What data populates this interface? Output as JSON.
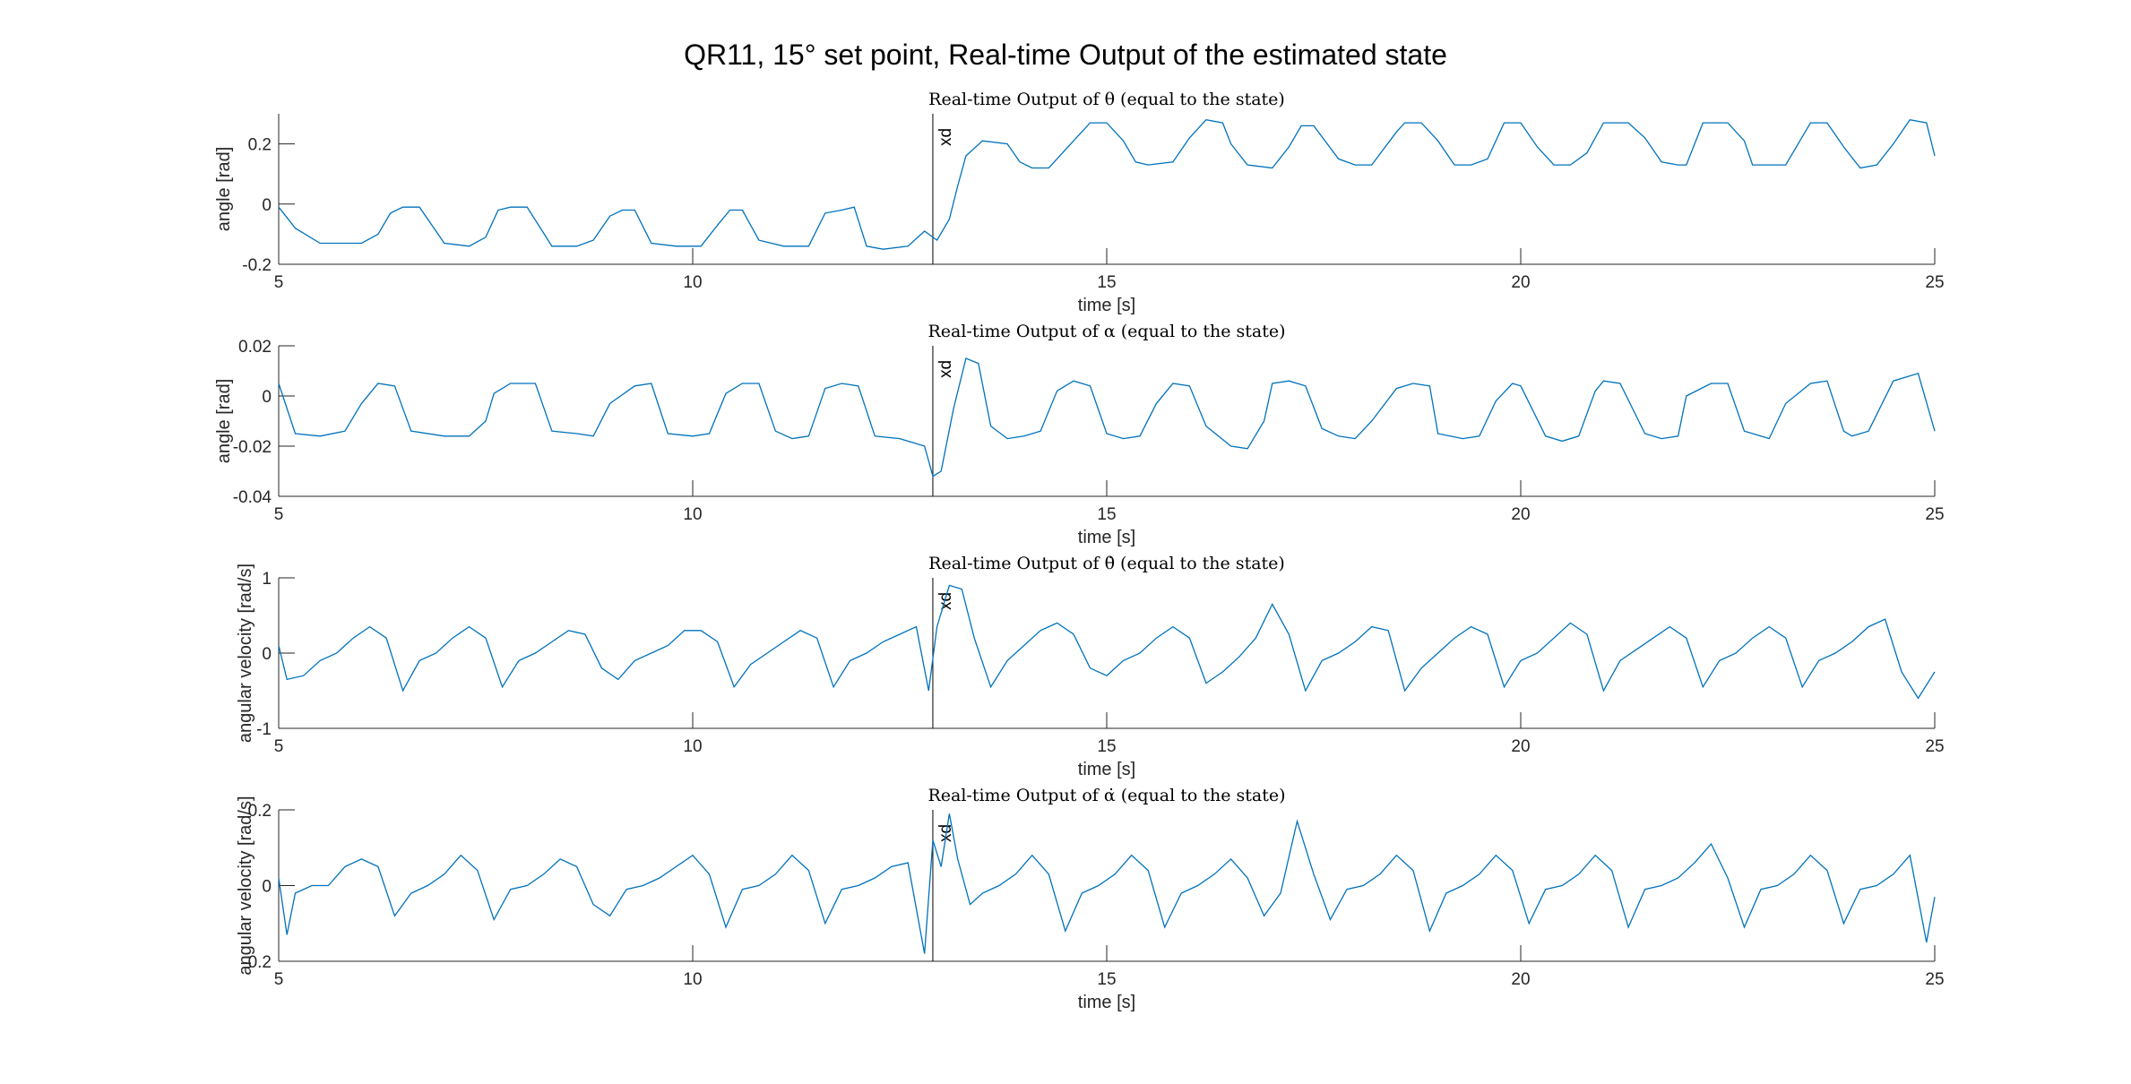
{
  "title": "QR11, 15° set point, Real-time Output of the estimated state",
  "colors": {
    "series": "#0072BD",
    "axis": "#262626",
    "marker": "#000000"
  },
  "chart_data": [
    {
      "type": "line",
      "title": "Real-time Output of θ (equal to the state)",
      "xlabel": "time [s]",
      "ylabel": "angle [rad]",
      "xlim": [
        5,
        25
      ],
      "ylim": [
        -0.2,
        0.3
      ],
      "xticks": [
        5,
        10,
        15,
        20,
        25
      ],
      "xtick_labels": [
        "5",
        "10",
        "15",
        "20",
        "25"
      ],
      "yticks": [
        -0.2,
        0,
        0.2
      ],
      "ytick_labels": [
        "-0.2",
        "0",
        "0.2"
      ],
      "marker_line": {
        "x": 12.9,
        "label": "xd"
      },
      "series": [
        {
          "x": [
            5.0,
            5.2,
            5.5,
            6.0,
            6.2,
            6.35,
            6.5,
            6.7,
            7.0,
            7.3,
            7.5,
            7.65,
            7.8,
            8.0,
            8.3,
            8.6,
            8.8,
            9.0,
            9.15,
            9.3,
            9.5,
            9.8,
            10.1,
            10.3,
            10.45,
            10.6,
            10.8,
            11.1,
            11.4,
            11.6,
            11.8,
            11.95,
            12.1,
            12.3,
            12.6,
            12.8,
            12.95,
            13.1,
            13.2,
            13.3,
            13.5,
            13.8,
            13.95,
            14.1,
            14.3,
            14.6,
            14.8,
            15.0,
            15.2,
            15.35,
            15.5,
            15.8,
            16.0,
            16.2,
            16.4,
            16.5,
            16.7,
            17.0,
            17.2,
            17.35,
            17.5,
            17.8,
            18.0,
            18.2,
            18.5,
            18.6,
            18.8,
            19.0,
            19.2,
            19.4,
            19.6,
            19.8,
            20.0,
            20.2,
            20.4,
            20.6,
            20.8,
            21.0,
            21.3,
            21.5,
            21.7,
            21.9,
            22.0,
            22.2,
            22.5,
            22.7,
            22.8,
            23.0,
            23.2,
            23.5,
            23.7,
            23.9,
            24.1,
            24.3,
            24.5,
            24.7,
            24.9,
            25.0
          ],
          "y": [
            -0.01,
            -0.08,
            -0.13,
            -0.13,
            -0.1,
            -0.03,
            -0.01,
            -0.01,
            -0.13,
            -0.14,
            -0.11,
            -0.02,
            -0.01,
            -0.01,
            -0.14,
            -0.14,
            -0.12,
            -0.04,
            -0.02,
            -0.02,
            -0.13,
            -0.14,
            -0.14,
            -0.07,
            -0.02,
            -0.02,
            -0.12,
            -0.14,
            -0.14,
            -0.03,
            -0.02,
            -0.01,
            -0.14,
            -0.15,
            -0.14,
            -0.09,
            -0.12,
            -0.05,
            0.06,
            0.16,
            0.21,
            0.2,
            0.14,
            0.12,
            0.12,
            0.21,
            0.27,
            0.27,
            0.21,
            0.14,
            0.13,
            0.14,
            0.22,
            0.28,
            0.27,
            0.2,
            0.13,
            0.12,
            0.19,
            0.26,
            0.26,
            0.15,
            0.13,
            0.13,
            0.24,
            0.27,
            0.27,
            0.21,
            0.13,
            0.13,
            0.15,
            0.27,
            0.27,
            0.19,
            0.13,
            0.13,
            0.17,
            0.27,
            0.27,
            0.22,
            0.14,
            0.13,
            0.13,
            0.27,
            0.27,
            0.21,
            0.13,
            0.13,
            0.13,
            0.27,
            0.27,
            0.19,
            0.12,
            0.13,
            0.2,
            0.28,
            0.27,
            0.16
          ]
        }
      ]
    },
    {
      "type": "line",
      "title": "Real-time Output of α (equal to the state)",
      "xlabel": "time [s]",
      "ylabel": "angle [rad]",
      "xlim": [
        5,
        25
      ],
      "ylim": [
        -0.04,
        0.02
      ],
      "xticks": [
        5,
        10,
        15,
        20,
        25
      ],
      "xtick_labels": [
        "5",
        "10",
        "15",
        "20",
        "25"
      ],
      "yticks": [
        -0.04,
        -0.02,
        0,
        0.02
      ],
      "ytick_labels": [
        "-0.04",
        "-0.02",
        "0",
        "0.02"
      ],
      "marker_line": {
        "x": 12.9,
        "label": "xd"
      },
      "series": [
        {
          "x": [
            5.0,
            5.2,
            5.5,
            5.8,
            6.0,
            6.2,
            6.4,
            6.6,
            7.0,
            7.3,
            7.5,
            7.6,
            7.8,
            8.1,
            8.3,
            8.6,
            8.8,
            9.0,
            9.3,
            9.5,
            9.7,
            10.0,
            10.2,
            10.4,
            10.6,
            10.8,
            11.0,
            11.2,
            11.4,
            11.6,
            11.8,
            12.0,
            12.2,
            12.5,
            12.8,
            12.9,
            13.0,
            13.15,
            13.3,
            13.45,
            13.6,
            13.8,
            14.0,
            14.2,
            14.4,
            14.6,
            14.8,
            15.0,
            15.2,
            15.4,
            15.6,
            15.8,
            16.0,
            16.2,
            16.5,
            16.7,
            16.9,
            17.0,
            17.2,
            17.4,
            17.6,
            17.8,
            18.0,
            18.2,
            18.5,
            18.7,
            18.9,
            19.0,
            19.3,
            19.5,
            19.7,
            19.9,
            20.0,
            20.3,
            20.5,
            20.7,
            20.9,
            21.0,
            21.2,
            21.5,
            21.7,
            21.9,
            22.0,
            22.3,
            22.5,
            22.7,
            22.9,
            23.0,
            23.2,
            23.5,
            23.7,
            23.9,
            24.0,
            24.2,
            24.5,
            24.8,
            25.0
          ],
          "y": [
            0.005,
            -0.015,
            -0.016,
            -0.014,
            -0.003,
            0.005,
            0.004,
            -0.014,
            -0.016,
            -0.016,
            -0.01,
            0.001,
            0.005,
            0.005,
            -0.014,
            -0.015,
            -0.016,
            -0.003,
            0.004,
            0.005,
            -0.015,
            -0.016,
            -0.015,
            0.001,
            0.005,
            0.005,
            -0.014,
            -0.017,
            -0.016,
            0.003,
            0.005,
            0.004,
            -0.016,
            -0.017,
            -0.02,
            -0.032,
            -0.03,
            -0.005,
            0.015,
            0.013,
            -0.012,
            -0.017,
            -0.016,
            -0.014,
            0.002,
            0.006,
            0.004,
            -0.015,
            -0.017,
            -0.016,
            -0.003,
            0.005,
            0.004,
            -0.012,
            -0.02,
            -0.021,
            -0.01,
            0.005,
            0.006,
            0.004,
            -0.013,
            -0.016,
            -0.017,
            -0.01,
            0.003,
            0.005,
            0.004,
            -0.015,
            -0.017,
            -0.016,
            -0.002,
            0.005,
            0.004,
            -0.016,
            -0.018,
            -0.016,
            0.002,
            0.006,
            0.005,
            -0.015,
            -0.017,
            -0.016,
            0.0,
            0.005,
            0.005,
            -0.014,
            -0.016,
            -0.017,
            -0.003,
            0.005,
            0.006,
            -0.014,
            -0.016,
            -0.014,
            0.006,
            0.009,
            -0.014
          ]
        }
      ]
    },
    {
      "type": "line",
      "title": "Real-time Output of θ̇ (equal to the state)",
      "xlabel": "time [s]",
      "ylabel": "angular velocity [rad/s]",
      "xlim": [
        5,
        25
      ],
      "ylim": [
        -1,
        1
      ],
      "xticks": [
        5,
        10,
        15,
        20,
        25
      ],
      "xtick_labels": [
        "5",
        "10",
        "15",
        "20",
        "25"
      ],
      "yticks": [
        -1,
        0,
        1
      ],
      "ytick_labels": [
        "-1",
        "0",
        "1"
      ],
      "marker_line": {
        "x": 12.9,
        "label": "xd"
      },
      "series": [
        {
          "x": [
            5.0,
            5.1,
            5.3,
            5.5,
            5.7,
            5.9,
            6.1,
            6.3,
            6.5,
            6.7,
            6.9,
            7.1,
            7.3,
            7.5,
            7.7,
            7.9,
            8.1,
            8.3,
            8.5,
            8.7,
            8.9,
            9.1,
            9.3,
            9.5,
            9.7,
            9.9,
            10.1,
            10.3,
            10.5,
            10.7,
            10.9,
            11.1,
            11.3,
            11.5,
            11.7,
            11.9,
            12.1,
            12.3,
            12.5,
            12.7,
            12.85,
            12.95,
            13.1,
            13.25,
            13.4,
            13.6,
            13.8,
            14.0,
            14.2,
            14.4,
            14.6,
            14.8,
            15.0,
            15.2,
            15.4,
            15.6,
            15.8,
            16.0,
            16.2,
            16.4,
            16.6,
            16.8,
            17.0,
            17.2,
            17.4,
            17.6,
            17.8,
            18.0,
            18.2,
            18.4,
            18.6,
            18.8,
            19.0,
            19.2,
            19.4,
            19.6,
            19.8,
            20.0,
            20.2,
            20.4,
            20.6,
            20.8,
            21.0,
            21.2,
            21.4,
            21.6,
            21.8,
            22.0,
            22.2,
            22.4,
            22.6,
            22.8,
            23.0,
            23.2,
            23.4,
            23.6,
            23.8,
            24.0,
            24.2,
            24.4,
            24.6,
            24.8,
            25.0
          ],
          "y": [
            0.1,
            -0.35,
            -0.3,
            -0.1,
            0.0,
            0.2,
            0.35,
            0.2,
            -0.5,
            -0.1,
            0.0,
            0.2,
            0.35,
            0.2,
            -0.45,
            -0.1,
            0.0,
            0.15,
            0.3,
            0.25,
            -0.2,
            -0.35,
            -0.1,
            0.0,
            0.1,
            0.3,
            0.3,
            0.15,
            -0.45,
            -0.15,
            0.0,
            0.15,
            0.3,
            0.2,
            -0.45,
            -0.1,
            0.0,
            0.15,
            0.25,
            0.35,
            -0.5,
            0.35,
            0.9,
            0.85,
            0.2,
            -0.45,
            -0.1,
            0.1,
            0.3,
            0.4,
            0.25,
            -0.2,
            -0.3,
            -0.1,
            0.0,
            0.2,
            0.35,
            0.2,
            -0.4,
            -0.25,
            -0.05,
            0.2,
            0.65,
            0.25,
            -0.5,
            -0.1,
            0.0,
            0.15,
            0.35,
            0.3,
            -0.5,
            -0.2,
            0.0,
            0.2,
            0.35,
            0.25,
            -0.45,
            -0.1,
            0.0,
            0.2,
            0.4,
            0.25,
            -0.5,
            -0.1,
            0.05,
            0.2,
            0.35,
            0.2,
            -0.45,
            -0.1,
            0.0,
            0.2,
            0.35,
            0.2,
            -0.45,
            -0.1,
            0.0,
            0.15,
            0.35,
            0.45,
            -0.25,
            -0.6,
            -0.25
          ]
        }
      ]
    },
    {
      "type": "line",
      "title": "Real-time Output of α̇ (equal to the state)",
      "xlabel": "time [s]",
      "ylabel": "angular velocity [rad/s]",
      "xlim": [
        5,
        25
      ],
      "ylim": [
        -0.2,
        0.2
      ],
      "xticks": [
        5,
        10,
        15,
        20,
        25
      ],
      "xtick_labels": [
        "5",
        "10",
        "15",
        "20",
        "25"
      ],
      "yticks": [
        -0.2,
        0,
        0.2
      ],
      "ytick_labels": [
        "-0.2",
        "0",
        "0.2"
      ],
      "marker_line": {
        "x": 12.9,
        "label": "xd"
      },
      "series": [
        {
          "x": [
            5.0,
            5.1,
            5.2,
            5.4,
            5.6,
            5.8,
            6.0,
            6.2,
            6.4,
            6.6,
            6.8,
            7.0,
            7.2,
            7.4,
            7.6,
            7.8,
            8.0,
            8.2,
            8.4,
            8.6,
            8.8,
            9.0,
            9.2,
            9.4,
            9.6,
            9.8,
            10.0,
            10.2,
            10.4,
            10.6,
            10.8,
            11.0,
            11.2,
            11.4,
            11.6,
            11.8,
            12.0,
            12.2,
            12.4,
            12.6,
            12.8,
            12.9,
            13.0,
            13.1,
            13.2,
            13.35,
            13.5,
            13.7,
            13.9,
            14.1,
            14.3,
            14.5,
            14.7,
            14.9,
            15.1,
            15.3,
            15.5,
            15.7,
            15.9,
            16.1,
            16.3,
            16.5,
            16.7,
            16.9,
            17.1,
            17.3,
            17.5,
            17.7,
            17.9,
            18.1,
            18.3,
            18.5,
            18.7,
            18.9,
            19.1,
            19.3,
            19.5,
            19.7,
            19.9,
            20.1,
            20.3,
            20.5,
            20.7,
            20.9,
            21.1,
            21.3,
            21.5,
            21.7,
            21.9,
            22.1,
            22.3,
            22.5,
            22.7,
            22.9,
            23.1,
            23.3,
            23.5,
            23.7,
            23.9,
            24.1,
            24.3,
            24.5,
            24.7,
            24.9,
            25.0
          ],
          "y": [
            0.02,
            -0.13,
            -0.02,
            0.0,
            0.0,
            0.05,
            0.07,
            0.05,
            -0.08,
            -0.02,
            0.0,
            0.03,
            0.08,
            0.04,
            -0.09,
            -0.01,
            0.0,
            0.03,
            0.07,
            0.05,
            -0.05,
            -0.08,
            -0.01,
            0.0,
            0.02,
            0.05,
            0.08,
            0.03,
            -0.11,
            -0.01,
            0.0,
            0.03,
            0.08,
            0.04,
            -0.1,
            -0.01,
            0.0,
            0.02,
            0.05,
            0.06,
            -0.18,
            0.12,
            0.05,
            0.19,
            0.07,
            -0.05,
            -0.02,
            0.0,
            0.03,
            0.08,
            0.03,
            -0.12,
            -0.02,
            0.0,
            0.03,
            0.08,
            0.04,
            -0.11,
            -0.02,
            0.0,
            0.03,
            0.07,
            0.02,
            -0.08,
            -0.02,
            0.17,
            0.03,
            -0.09,
            -0.01,
            0.0,
            0.03,
            0.08,
            0.04,
            -0.12,
            -0.02,
            0.0,
            0.03,
            0.08,
            0.04,
            -0.1,
            -0.01,
            0.0,
            0.03,
            0.08,
            0.04,
            -0.11,
            -0.01,
            0.0,
            0.02,
            0.06,
            0.11,
            0.02,
            -0.11,
            -0.01,
            0.0,
            0.03,
            0.08,
            0.04,
            -0.1,
            -0.01,
            0.0,
            0.03,
            0.08,
            -0.15,
            -0.03
          ]
        }
      ]
    }
  ]
}
